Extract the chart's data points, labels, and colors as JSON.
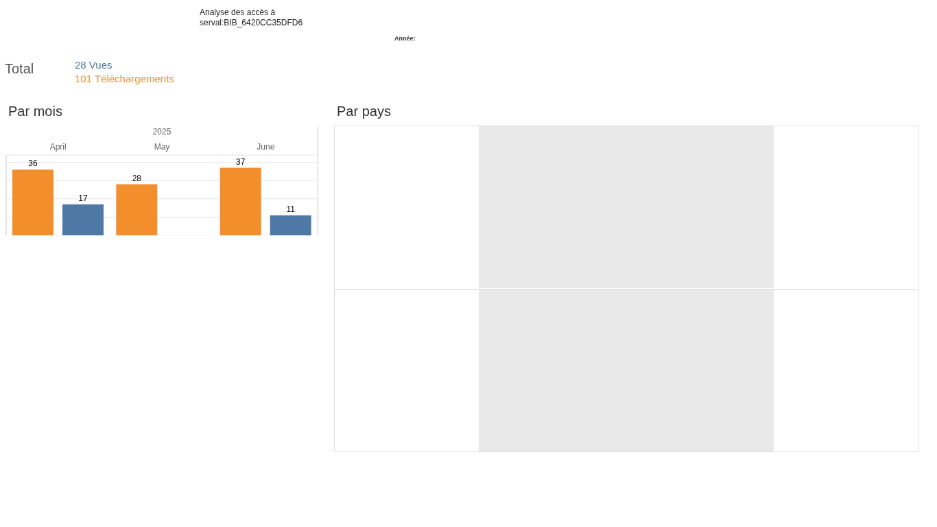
{
  "chart_data": [
    {
      "type": "other",
      "title": "Analyse des accès à\nserval:BIB_6420CC35DFD6",
      "annotations": [
        "Année:"
      ]
    },
    {
      "type": "other",
      "title": "Total",
      "annotations": [
        "28 Vues",
        "101 Téléchargements"
      ]
    },
    {
      "type": "bar",
      "title": "Par mois",
      "xlabel": "2025",
      "categories": [
        "April",
        "May",
        "June"
      ],
      "series": [
        {
          "color": "#f28e2b",
          "values": [
            36,
            28,
            37
          ]
        },
        {
          "color": "#4e79a7",
          "values": [
            17,
            null,
            11
          ]
        }
      ],
      "ylim": [
        0,
        44
      ],
      "yticks": [
        {
          "value": 10,
          "label": null
        },
        {
          "value": 20,
          "label": null
        },
        {
          "value": 30,
          "label": null
        },
        {
          "value": 40,
          "label": null
        }
      ],
      "grid": "y",
      "tick_labels": "x",
      "data_labels": true
    },
    {
      "type": "other",
      "title": "Par pays"
    }
  ]
}
